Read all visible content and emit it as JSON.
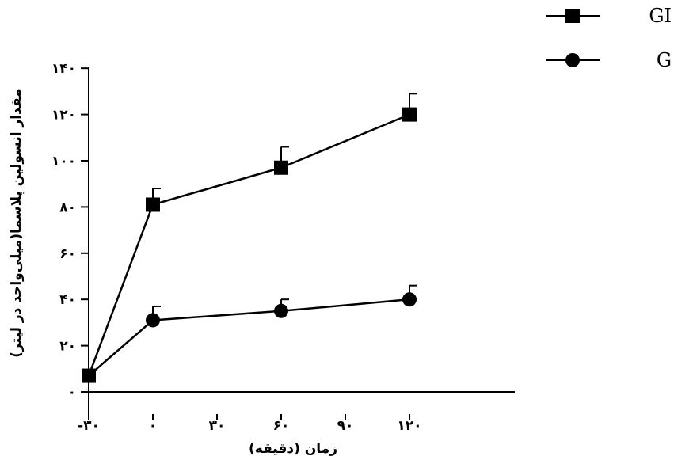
{
  "chart_data": {
    "type": "line",
    "title": "",
    "xlabel": "زمان (دقیقه)",
    "ylabel": "مقدار انسولین پلاسما(میلی‌واحد در لیتر)",
    "x": [
      -30,
      0,
      60,
      120
    ],
    "xticks": [
      -30,
      0,
      30,
      60,
      90,
      120
    ],
    "xtick_labels": [
      "-۳۰",
      "۰",
      "۳۰",
      "۶۰",
      "۹۰",
      "۱۲۰"
    ],
    "yticks": [
      0,
      20,
      40,
      60,
      80,
      100,
      120,
      140
    ],
    "ytick_labels": [
      "۰",
      "۲۰",
      "۴۰",
      "۶۰",
      "۸۰",
      "۱۰۰",
      "۱۲۰",
      "۱۴۰"
    ],
    "xlim": [
      -30,
      135
    ],
    "ylim": [
      0,
      140
    ],
    "grid": false,
    "legend_position": "top-right",
    "series": [
      {
        "name": "GI",
        "marker": "square",
        "values": [
          7,
          81,
          97,
          120
        ],
        "errors": [
          0,
          7,
          9,
          9
        ]
      },
      {
        "name": "G",
        "marker": "circle",
        "values": [
          7,
          31,
          35,
          40
        ],
        "errors": [
          0,
          6,
          5,
          6
        ]
      }
    ],
    "colors": {
      "series": "#000000",
      "background": "#ffffff"
    }
  }
}
